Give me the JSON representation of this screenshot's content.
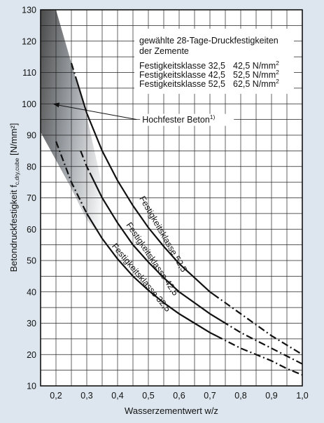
{
  "chart_data": {
    "type": "line",
    "xlabel": "Wasserzementwert w/z",
    "ylabel": {
      "main": "Betondruckfestigkeit  f",
      "sub": "c,dry,cube",
      "unit": " [N/mm²]"
    },
    "xlim": [
      0.15,
      1.0
    ],
    "ylim": [
      10,
      130
    ],
    "x_grid_step": 0.05,
    "y_grid_step": 5,
    "grid": true,
    "xticks": [
      {
        "v": 0.2,
        "label": "0,2"
      },
      {
        "v": 0.3,
        "label": "0,3"
      },
      {
        "v": 0.4,
        "label": "0,4"
      },
      {
        "v": 0.5,
        "label": "0,5"
      },
      {
        "v": 0.6,
        "label": "0,6"
      },
      {
        "v": 0.7,
        "label": "0,7"
      },
      {
        "v": 0.8,
        "label": "0,8"
      },
      {
        "v": 0.9,
        "label": "0,9"
      },
      {
        "v": 1.0,
        "label": "1,0"
      }
    ],
    "yticks": [
      {
        "v": 10,
        "label": "10"
      },
      {
        "v": 20,
        "label": "20"
      },
      {
        "v": 30,
        "label": "30"
      },
      {
        "v": 40,
        "label": "40"
      },
      {
        "v": 50,
        "label": "50"
      },
      {
        "v": 60,
        "label": "60"
      },
      {
        "v": 70,
        "label": "70"
      },
      {
        "v": 80,
        "label": "80"
      },
      {
        "v": 90,
        "label": "90"
      },
      {
        "v": 100,
        "label": "100"
      },
      {
        "v": 110,
        "label": "110"
      },
      {
        "v": 120,
        "label": "120"
      },
      {
        "v": 130,
        "label": "130"
      }
    ],
    "series": [
      {
        "name": "Festigkeitsklasse 52,5",
        "label_anchor": {
          "x": 0.54,
          "y": 58
        },
        "label_angle": 60,
        "x": [
          0.25,
          0.3,
          0.35,
          0.4,
          0.45,
          0.5,
          0.55,
          0.6,
          0.65,
          0.7,
          0.75,
          0.8,
          0.85,
          0.9,
          0.95,
          1.0
        ],
        "y": [
          113,
          97,
          85,
          75.5,
          67.5,
          60.5,
          54.5,
          49,
          44.5,
          40,
          36.5,
          33,
          29.5,
          26,
          23,
          20
        ],
        "solid_x_range": [
          0.27,
          0.71
        ]
      },
      {
        "name": "Festigkeitsklasse 42,5",
        "label_anchor": {
          "x": 0.505,
          "y": 50
        },
        "label_angle": 56,
        "x": [
          0.28,
          0.3,
          0.35,
          0.4,
          0.45,
          0.5,
          0.55,
          0.6,
          0.65,
          0.7,
          0.75,
          0.8,
          0.85,
          0.9,
          0.95,
          1.0
        ],
        "y": [
          85,
          80,
          70,
          62,
          55,
          49.5,
          44.5,
          40,
          36.5,
          33,
          30,
          27,
          24.5,
          22,
          19.5,
          17
        ],
        "solid_x_range": [
          0.31,
          0.74
        ]
      },
      {
        "name": "Festigkeitsklasse 32,5",
        "label_anchor": {
          "x": 0.47,
          "y": 44
        },
        "label_angle": 50,
        "x": [
          0.2,
          0.25,
          0.3,
          0.35,
          0.4,
          0.45,
          0.5,
          0.55,
          0.6,
          0.65,
          0.7,
          0.75,
          0.8,
          0.85,
          0.9,
          0.95,
          1.0
        ],
        "y": [
          88,
          75,
          65,
          57,
          50.5,
          45,
          40.5,
          36.5,
          33,
          30,
          27,
          24.5,
          22,
          20,
          18,
          15.5,
          13.5
        ],
        "solid_x_range": [
          0.3,
          0.72
        ]
      }
    ],
    "shaded_region": {
      "label": "Hochfester Beton",
      "label_sup": "1)",
      "upper_boundary_x": [
        0.15,
        0.2,
        0.25,
        0.3
      ],
      "upper_boundary_y": [
        130,
        130,
        113,
        96
      ],
      "lower_boundary_x": [
        0.15,
        0.2,
        0.25,
        0.3,
        0.35,
        0.4
      ],
      "lower_boundary_y": [
        91,
        82,
        73,
        63,
        57,
        52
      ],
      "arrow_target": {
        "x": 0.19,
        "y": 100
      },
      "label_anchor": {
        "x": 0.48,
        "y": 95
      }
    },
    "legend_box": {
      "title_line1": "gewählte 28-Tage-Druckfestigkeiten",
      "title_line2": "der Zemente",
      "rows": [
        {
          "name": "Festigkeitsklasse 32,5",
          "value": "42,5 N/mm",
          "exp": "2"
        },
        {
          "name": "Festigkeitsklasse 42,5",
          "value": "52,5 N/mm",
          "exp": "2"
        },
        {
          "name": "Festigkeitsklasse 52,5",
          "value": "62,5 N/mm",
          "exp": "2"
        }
      ],
      "placement": "top-right"
    }
  }
}
